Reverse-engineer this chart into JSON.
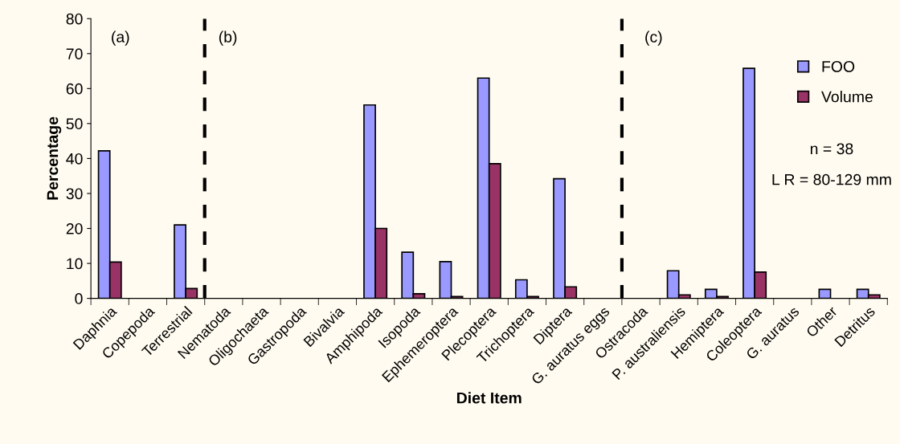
{
  "chart_data": {
    "type": "bar",
    "xlabel": "Diet Item",
    "ylabel": "Percentage",
    "categories": [
      "Daphnia",
      "Copepoda",
      "Terrestrial",
      "Nematoda",
      "Oligochaeta",
      "Gastropoda",
      "Bivalvia",
      "Amphipoda",
      "Isopoda",
      "Ephemeroptera",
      "Plecoptera",
      "Trichoptera",
      "Diptera",
      "G. auratus eggs",
      "Ostracoda",
      "P. australiensis",
      "Hemiptera",
      "Coleoptera",
      "G. auratus",
      "Other",
      "Detritus"
    ],
    "series": [
      {
        "name": "FOO",
        "color": "#9999ff",
        "values": [
          42.2,
          0,
          21,
          0,
          0,
          0,
          0,
          55.3,
          13.2,
          10.5,
          63,
          5.3,
          34.2,
          0,
          0,
          7.9,
          2.6,
          65.8,
          0,
          2.6,
          2.6
        ]
      },
      {
        "name": "Volume",
        "color": "#993366",
        "values": [
          10.4,
          0,
          2.8,
          0,
          0,
          0,
          0,
          20,
          1.3,
          0.5,
          38.5,
          0.5,
          3.3,
          0,
          0,
          1,
          0.5,
          7.5,
          0,
          0,
          1
        ]
      }
    ],
    "ylim": [
      0,
      80
    ],
    "yticks": [
      0,
      10,
      20,
      30,
      40,
      50,
      60,
      70,
      80
    ],
    "annotations": [
      "(a)",
      "(b)",
      "(c)",
      "n = 38",
      "L R = 80-129 mm"
    ],
    "legend": "right",
    "grid": false
  }
}
